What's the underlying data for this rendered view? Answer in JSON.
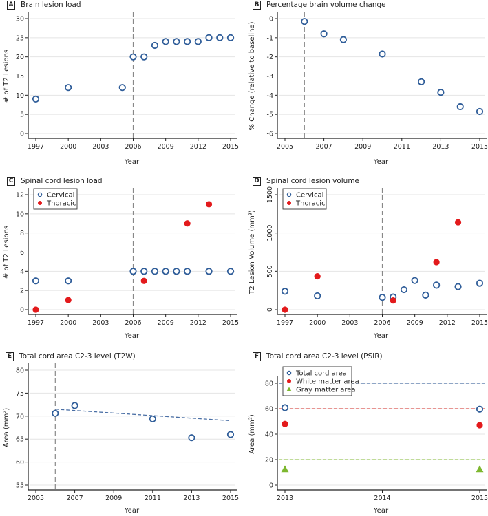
{
  "colors": {
    "open_marker": "#2f5d99",
    "thoracic": "#e31a1c",
    "gray_matter": "#7db72f",
    "gridline": "#e4e4e4",
    "axis": "#222222",
    "vline": "#888888",
    "trend": "#4a6fa5",
    "ref_total": "#4a6fa5",
    "ref_white": "#d9534f",
    "ref_gray": "#9bc85b"
  },
  "chart_data": [
    {
      "id": "A",
      "letter": "A",
      "type": "scatter",
      "title": "Brain lesion load",
      "xlabel": "Year",
      "ylabel": "# of T2 Lesions",
      "xlim": [
        1997,
        2015
      ],
      "xticks": [
        1997,
        2000,
        2003,
        2006,
        2009,
        2012,
        2015
      ],
      "ylim": [
        0,
        30
      ],
      "yticks": [
        0,
        5,
        10,
        15,
        20,
        25,
        30
      ],
      "grid": true,
      "vline_x": 2006,
      "series": [
        {
          "name": "Brain lesions",
          "marker": "open-circle",
          "x": [
            1997,
            2000,
            2005,
            2006,
            2007,
            2008,
            2009,
            2010,
            2011,
            2012,
            2013,
            2014,
            2015
          ],
          "y": [
            9,
            12,
            12,
            20,
            20,
            23,
            24,
            24,
            24,
            24,
            25,
            25,
            25
          ]
        }
      ]
    },
    {
      "id": "B",
      "letter": "B",
      "type": "scatter",
      "title": "Percentage brain volume change",
      "xlabel": "Year",
      "ylabel": "% Change (relative to baseline)",
      "xlim": [
        2005,
        2015
      ],
      "xticks": [
        2005,
        2007,
        2009,
        2011,
        2013,
        2015
      ],
      "ylim": [
        -6,
        0
      ],
      "yticks": [
        -6,
        -5,
        -4,
        -3,
        -2,
        -1,
        0
      ],
      "grid": true,
      "vline_x": 2006,
      "series": [
        {
          "name": "Brain volume change",
          "marker": "open-circle",
          "x": [
            2006,
            2007,
            2008,
            2010,
            2012,
            2013,
            2014,
            2015
          ],
          "y": [
            -0.15,
            -0.8,
            -1.1,
            -1.85,
            -3.3,
            -3.85,
            -4.6,
            -4.85
          ]
        }
      ]
    },
    {
      "id": "C",
      "letter": "C",
      "type": "scatter",
      "title": "Spinal cord lesion load",
      "xlabel": "Year",
      "ylabel": "# of T2 Lesions",
      "xlim": [
        1997,
        2015
      ],
      "xticks": [
        1997,
        2000,
        2003,
        2006,
        2009,
        2012,
        2015
      ],
      "ylim": [
        0,
        12
      ],
      "yticks": [
        0,
        2,
        4,
        6,
        8,
        10,
        12
      ],
      "grid": true,
      "vline_x": 2006,
      "legend": "top-left",
      "series": [
        {
          "name": "Cervical",
          "marker": "open-circle",
          "x": [
            1997,
            2000,
            2006,
            2007,
            2008,
            2009,
            2010,
            2011,
            2013,
            2015
          ],
          "y": [
            3,
            3,
            4,
            4,
            4,
            4,
            4,
            4,
            4,
            4
          ]
        },
        {
          "name": "Thoracic",
          "marker": "filled-red",
          "x": [
            1997,
            2000,
            2007,
            2011,
            2013
          ],
          "y": [
            0,
            1,
            3,
            9,
            11
          ]
        }
      ]
    },
    {
      "id": "D",
      "letter": "D",
      "type": "scatter",
      "title": "Spinal cord lesion volume",
      "xlabel": "Year",
      "ylabel": "T2 Lesion Volume (mm³)",
      "xlim": [
        1997,
        2015
      ],
      "xticks": [
        1997,
        2000,
        2003,
        2006,
        2009,
        2012,
        2015
      ],
      "ylim": [
        0,
        1500
      ],
      "yticks": [
        0,
        500,
        1000,
        1500
      ],
      "rotated_yticks": true,
      "grid": true,
      "vline_x": 2006,
      "legend": "top-left",
      "series": [
        {
          "name": "Cervical",
          "marker": "open-circle",
          "x": [
            1997,
            2000,
            2006,
            2007,
            2008,
            2009,
            2010,
            2011,
            2013,
            2015
          ],
          "y": [
            240,
            180,
            160,
            165,
            260,
            380,
            190,
            320,
            300,
            345
          ]
        },
        {
          "name": "Thoracic",
          "marker": "filled-red",
          "x": [
            1997,
            2000,
            2007,
            2011,
            2013
          ],
          "y": [
            0,
            435,
            120,
            620,
            1140
          ]
        }
      ]
    },
    {
      "id": "E",
      "letter": "E",
      "type": "scatter",
      "title": "Total cord area C2-3 level (T2W)",
      "xlabel": "Year",
      "ylabel": "Area (mm²)",
      "xlim": [
        2005,
        2015
      ],
      "xticks": [
        2005,
        2007,
        2009,
        2011,
        2013,
        2015
      ],
      "ylim": [
        55,
        80
      ],
      "yticks": [
        55,
        60,
        65,
        70,
        75,
        80
      ],
      "grid": true,
      "vline_x": 2006,
      "trendline": {
        "x": [
          2006,
          2015
        ],
        "y": [
          71.5,
          69.0
        ]
      },
      "series": [
        {
          "name": "Total cord area",
          "marker": "open-circle",
          "x": [
            2006,
            2007,
            2011,
            2013,
            2015
          ],
          "y": [
            70.6,
            72.3,
            69.4,
            65.3,
            66.0
          ]
        }
      ]
    },
    {
      "id": "F",
      "letter": "F",
      "type": "scatter",
      "title": "Total cord area C2-3 level (PSIR)",
      "xlabel": "Year",
      "ylabel": "Area (mm²)",
      "xlim": [
        2013,
        2015
      ],
      "xticks": [
        2013,
        2014,
        2015
      ],
      "ylim": [
        0,
        80
      ],
      "yticks": [
        0,
        20,
        40,
        60,
        80
      ],
      "grid": true,
      "legend": "top-left",
      "reflines": [
        {
          "y": 80,
          "color_key": "ref_total"
        },
        {
          "y": 60,
          "color_key": "ref_white"
        },
        {
          "y": 20,
          "color_key": "ref_gray"
        }
      ],
      "series": [
        {
          "name": "Total cord area",
          "marker": "open-circle",
          "x": [
            2013,
            2015
          ],
          "y": [
            60.8,
            59.6
          ]
        },
        {
          "name": "White matter area",
          "marker": "filled-red",
          "x": [
            2013,
            2015
          ],
          "y": [
            48,
            47
          ]
        },
        {
          "name": "Gray matter area",
          "marker": "triangle-green",
          "x": [
            2013,
            2015
          ],
          "y": [
            12.5,
            12.5
          ]
        }
      ]
    }
  ]
}
